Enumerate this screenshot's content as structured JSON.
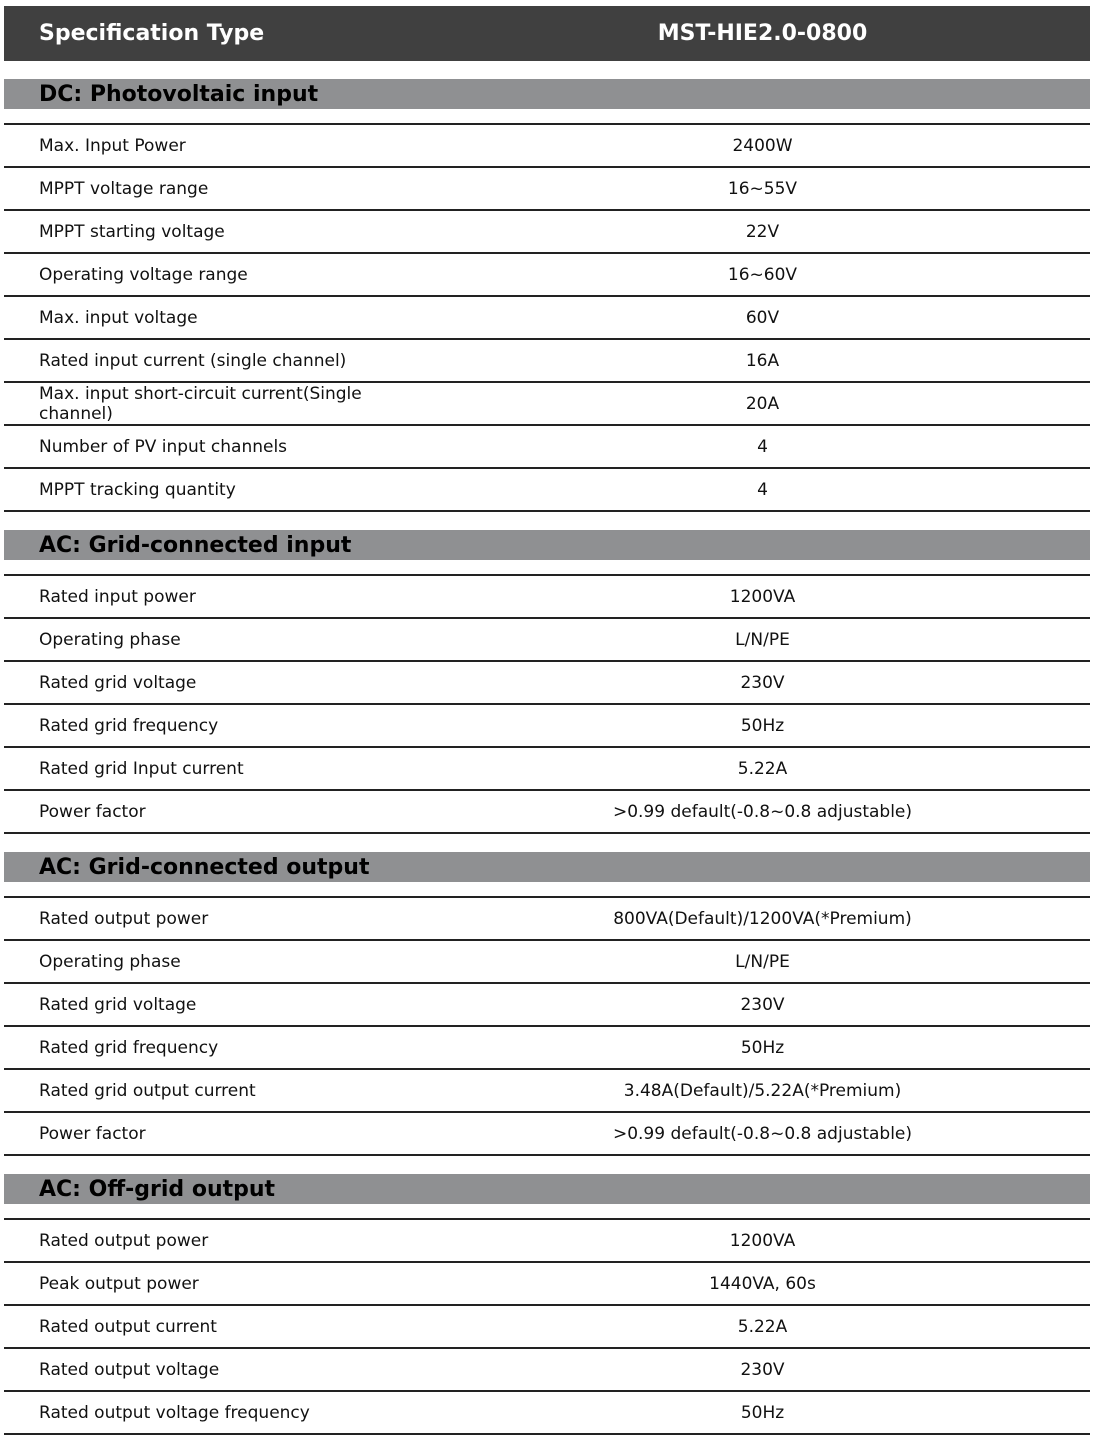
{
  "header": {
    "label": "Specification Type",
    "model": "MST-HIE2.0-0800"
  },
  "sections": [
    {
      "title": "DC: Photovoltaic input",
      "rows": [
        [
          "Max. Input Power",
          "2400W"
        ],
        [
          "MPPT voltage range",
          "16~55V"
        ],
        [
          "MPPT starting voltage",
          "22V"
        ],
        [
          "Operating voltage range",
          "16~60V"
        ],
        [
          "Max. input voltage",
          "60V"
        ],
        [
          "Rated input current (single channel)",
          "16A"
        ],
        [
          "Max. input short-circuit current(Single channel)",
          "20A"
        ],
        [
          "Number of PV input channels",
          "4"
        ],
        [
          "MPPT tracking quantity",
          "4"
        ]
      ]
    },
    {
      "title": "AC: Grid-connected input",
      "rows": [
        [
          "Rated input power",
          "1200VA"
        ],
        [
          "Operating phase",
          "L/N/PE"
        ],
        [
          "Rated grid voltage",
          "230V"
        ],
        [
          "Rated grid frequency",
          "50Hz"
        ],
        [
          "Rated grid Input current",
          "5.22A"
        ],
        [
          "Power factor",
          ">0.99 default(-0.8~0.8 adjustable)"
        ]
      ]
    },
    {
      "title": "AC: Grid-connected output",
      "rows": [
        [
          "Rated output power",
          "800VA(Default)/1200VA(*Premium)"
        ],
        [
          "Operating phase",
          "L/N/PE"
        ],
        [
          "Rated grid voltage",
          "230V"
        ],
        [
          "Rated grid frequency",
          "50Hz"
        ],
        [
          "Rated grid output current",
          "3.48A(Default)/5.22A(*Premium)"
        ],
        [
          "Power factor",
          ">0.99 default(-0.8~0.8 adjustable)"
        ]
      ]
    },
    {
      "title": "AC: Off-grid output",
      "rows": [
        [
          "Rated output power",
          "1200VA"
        ],
        [
          "Peak output power",
          "1440VA, 60s"
        ],
        [
          "Rated output current",
          "5.22A"
        ],
        [
          "Rated output voltage",
          "230V"
        ],
        [
          "Rated output voltage frequency",
          "50Hz"
        ]
      ]
    }
  ]
}
